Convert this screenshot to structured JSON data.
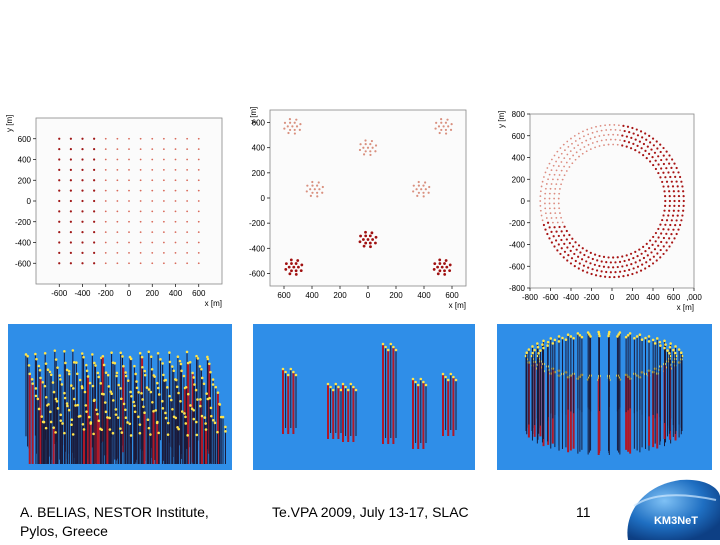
{
  "footer": {
    "author_line1": "A. BELIAS, NESTOR Institute,",
    "author_line2": "Pylos, Greece",
    "conference": "Te.VPA 2009, July 13-17, SLAC",
    "page_number": "11"
  },
  "logo": {
    "text": "KM3NeT"
  },
  "colors": {
    "render_background": "#2f8ee8",
    "string_dark": "#1a1a3a",
    "string_red": "#b01828",
    "om_yellow": "#ffe34a",
    "dot_red": "#c0392b"
  },
  "chart_data": [
    {
      "type": "scatter",
      "name": "homogeneous-grid",
      "xlabel": "x [m]",
      "ylabel": "y [m]",
      "xlim": [
        -800,
        800
      ],
      "ylim": [
        -800,
        800
      ],
      "xticks": [
        "-600",
        "-400",
        "-200",
        "0",
        "200",
        "400",
        "600"
      ],
      "yticks": [
        "600",
        "400",
        "200",
        "0",
        "-200",
        "-400",
        "-600"
      ],
      "grid_x": [
        -600,
        600,
        100
      ],
      "grid_y": [
        -600,
        600,
        100
      ]
    },
    {
      "type": "scatter",
      "name": "clustered-layout",
      "xlabel": "x [m]",
      "ylabel": "y [m]",
      "xlim": [
        -700,
        700
      ],
      "ylim": [
        -700,
        700
      ],
      "xticks": [
        "600",
        "400",
        "200",
        "0",
        "200",
        "400",
        "600"
      ],
      "yticks": [
        "600",
        "400",
        "200",
        "0",
        "-200",
        "-400",
        "-600"
      ],
      "clusters": [
        [
          -540,
          570
        ],
        [
          540,
          570
        ],
        [
          0,
          400
        ],
        [
          -380,
          70
        ],
        [
          380,
          70
        ],
        [
          0,
          -330
        ],
        [
          -530,
          -550
        ],
        [
          530,
          -550
        ]
      ],
      "cluster_radius": 60
    },
    {
      "type": "scatter",
      "name": "ring-layout",
      "xlabel": "x [m]",
      "ylabel": "y [m]",
      "xlim": [
        -800,
        800
      ],
      "ylim": [
        -800,
        800
      ],
      "xticks": [
        "-800",
        "-600",
        "-400",
        "-200",
        "0",
        "200",
        "400",
        "600",
        ",000"
      ],
      "yticks": [
        "800",
        "600",
        "400",
        "200",
        "0",
        "-200",
        "-400",
        "-600",
        "-800"
      ],
      "inner_radius": 520,
      "outer_radius": 700,
      "rings": 5
    }
  ]
}
